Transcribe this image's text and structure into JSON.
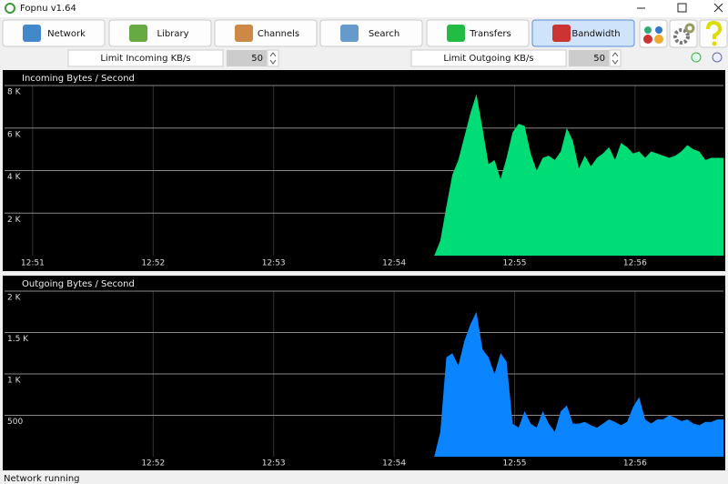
{
  "window": {
    "title": "Fopnu v1.64"
  },
  "toolbar": {
    "tabs": [
      "Network",
      "Library",
      "Channels",
      "Search",
      "Transfers",
      "Bandwidth"
    ],
    "selected_index": 5
  },
  "limits": [
    {
      "label": "Limit Incoming KB/s",
      "value": 50
    },
    {
      "label": "Limit Outgoing KB/s",
      "value": 50
    }
  ],
  "chart_data": [
    {
      "type": "area",
      "title": "Incoming Bytes / Second",
      "color": "#00dd77",
      "grid": true,
      "x": [
        200,
        203,
        206,
        209,
        212,
        215,
        218,
        221,
        224,
        227,
        230,
        233,
        236,
        239,
        242,
        245,
        248,
        251,
        254,
        257,
        260,
        263,
        266,
        269,
        272,
        275,
        278,
        281,
        284,
        287,
        290,
        293,
        296,
        299,
        302,
        305,
        308,
        311,
        314,
        317,
        320,
        323,
        326,
        329,
        332,
        335,
        338,
        341,
        344
      ],
      "values": [
        0,
        700,
        2300,
        3800,
        4500,
        5600,
        6700,
        7600,
        6000,
        4300,
        4500,
        3600,
        4600,
        5800,
        6200,
        6100,
        4800,
        4000,
        4600,
        4700,
        4500,
        4900,
        6000,
        5400,
        4100,
        4700,
        4200,
        4600,
        4800,
        5100,
        4500,
        5300,
        5100,
        4800,
        4900,
        4600,
        4900,
        4800,
        4700,
        4600,
        4700,
        4900,
        5200,
        5000,
        4900,
        4500,
        4600,
        4600,
        4600
      ],
      "xlim": [
        -14,
        344
      ],
      "xticks": [
        {
          "value": 0,
          "label": "12:51"
        },
        {
          "value": 60,
          "label": "12:52"
        },
        {
          "value": 120,
          "label": "12:53"
        },
        {
          "value": 180,
          "label": "12:54"
        },
        {
          "value": 240,
          "label": "12:55"
        },
        {
          "value": 300,
          "label": "12:56"
        }
      ],
      "ylim": [
        0,
        8000
      ],
      "yticks": [
        {
          "value": 2000,
          "label": "2 K"
        },
        {
          "value": 4000,
          "label": "4 K"
        },
        {
          "value": 6000,
          "label": "6 K"
        },
        {
          "value": 8000,
          "label": "8 K"
        }
      ]
    },
    {
      "type": "area",
      "title": "Outgoing Bytes / Second",
      "color": "#0a84ff",
      "grid": true,
      "x": [
        200,
        203,
        206,
        209,
        212,
        215,
        218,
        221,
        224,
        227,
        230,
        233,
        236,
        239,
        242,
        245,
        248,
        251,
        254,
        257,
        260,
        263,
        266,
        269,
        272,
        275,
        278,
        281,
        284,
        287,
        290,
        293,
        296,
        299,
        302,
        305,
        308,
        311,
        314,
        317,
        320,
        323,
        326,
        329,
        332,
        335,
        338,
        341,
        344
      ],
      "values": [
        0,
        300,
        1200,
        1250,
        1100,
        1400,
        1600,
        1750,
        1300,
        1200,
        1000,
        1250,
        1150,
        400,
        350,
        550,
        400,
        350,
        550,
        400,
        300,
        550,
        620,
        400,
        400,
        420,
        380,
        350,
        400,
        450,
        420,
        380,
        420,
        600,
        720,
        450,
        400,
        450,
        450,
        500,
        470,
        430,
        450,
        400,
        380,
        420,
        420,
        450,
        450
      ],
      "xlim": [
        -14,
        344
      ],
      "xticks": [
        {
          "value": 60,
          "label": "12:52"
        },
        {
          "value": 120,
          "label": "12:53"
        },
        {
          "value": 180,
          "label": "12:54"
        },
        {
          "value": 240,
          "label": "12:55"
        },
        {
          "value": 300,
          "label": "12:56"
        }
      ],
      "ylim": [
        0,
        2000
      ],
      "yticks": [
        {
          "value": 500,
          "label": "500"
        },
        {
          "value": 1000,
          "label": "1 K"
        },
        {
          "value": 1500,
          "label": "1.5 K"
        },
        {
          "value": 2000,
          "label": "2 K"
        }
      ]
    }
  ],
  "status": "Network running"
}
